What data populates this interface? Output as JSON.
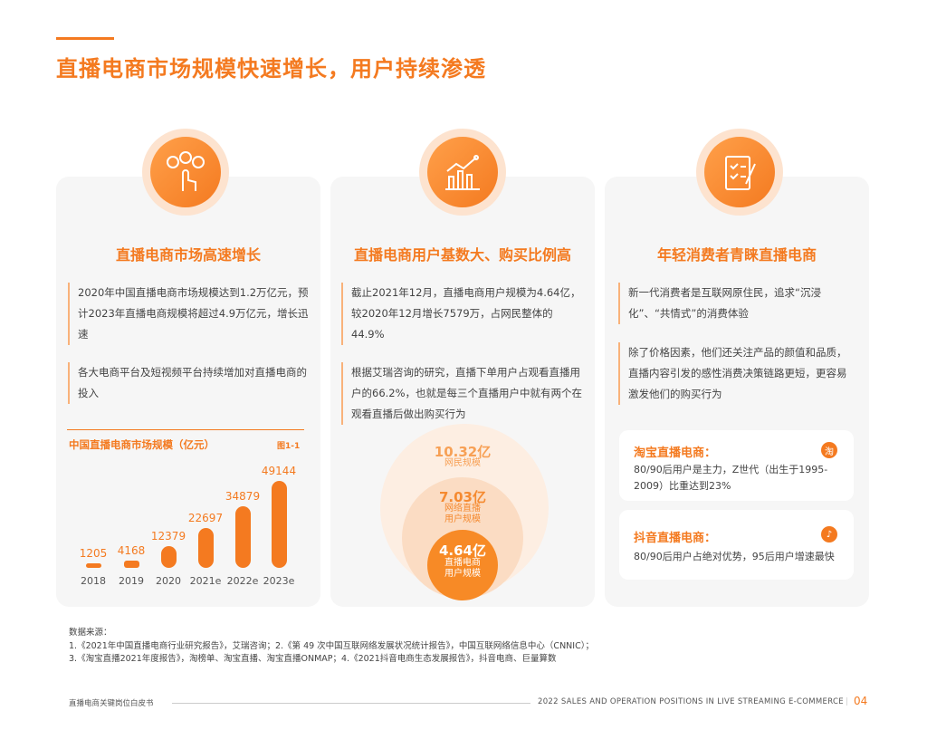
{
  "title": "直播电商市场规模快速增长，用户持续渗透",
  "colors": {
    "accent": "#f47a20",
    "card_bg": "#f6f6f6"
  },
  "cards": [
    {
      "icon": "users-hand-icon",
      "heading": "直播电商市场高速增长",
      "paragraphs": [
        "2020年中国直播电商市场规模达到1.2万亿元，预计2023年直播电商规模将超过4.9万亿元，增长迅速",
        "各大电商平台及短视频平台持续增加对直播电商的投入"
      ]
    },
    {
      "icon": "growth-chart-icon",
      "heading": "直播电商用户基数大、购买比例高",
      "paragraphs": [
        "截止2021年12月，直播电商用户规模为4.64亿，较2020年12月增长7579万，占网民整体的44.9%",
        "根据艾瑞咨询的研究，直播下单用户占观看直播用户的66.2%，也就是每三个直播用户中就有两个在观看直播后做出购买行为"
      ]
    },
    {
      "icon": "checklist-icon",
      "heading": "年轻消费者青睐直播电商",
      "paragraphs": [
        "新一代消费者是互联网原住民，追求“沉浸化”、“共情式”的消费体验",
        "除了价格因素，他们还关注产品的颜值和品质，直播内容引发的感性消费决策链路更短，更容易激发他们的购买行为"
      ]
    }
  ],
  "chart_data": {
    "type": "bar",
    "title": "中国直播电商市场规模（亿元）",
    "figure_label": "图1-1",
    "categories": [
      "2018",
      "2019",
      "2020",
      "2021e",
      "2022e",
      "2023e"
    ],
    "values": [
      1205,
      4168,
      12379,
      22697,
      34879,
      49144
    ],
    "ylim": [
      0,
      49144
    ]
  },
  "circles": [
    {
      "value": "10.32亿",
      "label": "网民规模"
    },
    {
      "value": "7.03亿",
      "label": "网络直播用户规模"
    },
    {
      "value": "4.64亿",
      "label": "直播电商用户规模"
    }
  ],
  "platforms": [
    {
      "name": "淘宝直播电商：",
      "badge": "淘",
      "text": "80/90后用户是主力，Z世代（出生于1995-2009）比重达到23%"
    },
    {
      "name": "抖音直播电商：",
      "badge": "♪",
      "text": "80/90后用户占绝对优势，95后用户增速最快"
    }
  ],
  "sources": {
    "label": "数据来源：",
    "line1": "1.《2021年中国直播电商行业研究报告》，艾瑞咨询；2.《第 49 次中国互联网络发展状况统计报告》，中国互联网络信息中心（CNNIC）；",
    "line2": "3.《淘宝直播2021年度报告》，淘榜单、淘宝直播、淘宝直播ONMAP；4.《2021抖音电商生态发展报告》，抖音电商、巨量算数"
  },
  "footer": {
    "left": "直播电商关键岗位白皮书",
    "right": "2022 SALES AND OPERATION POSITIONS IN LIVE STREAMING E-COMMERCE",
    "page": "04"
  }
}
